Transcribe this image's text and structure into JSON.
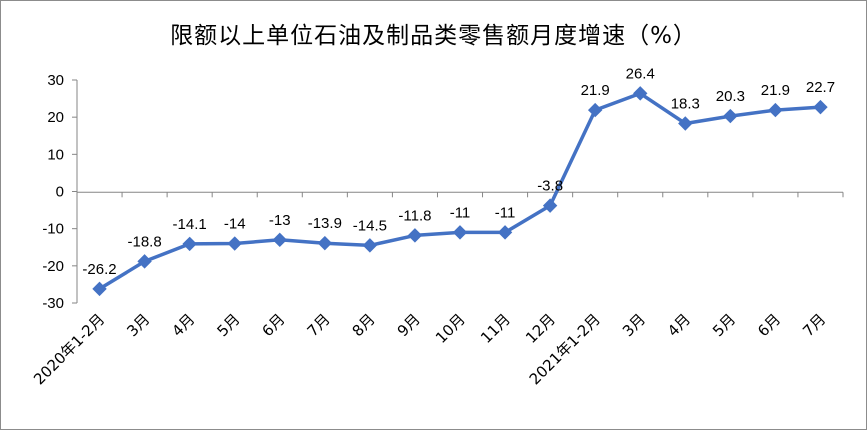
{
  "chart_data": {
    "type": "line",
    "title": "限额以上单位石油及制品类零售额月度增速（%）",
    "categories": [
      "2020年1-2月",
      "3月",
      "4月",
      "5月",
      "6月",
      "7月",
      "8月",
      "9月",
      "10月",
      "11月",
      "12月",
      "2021年1-2月",
      "3月",
      "4月",
      "5月",
      "6月",
      "7月"
    ],
    "series": [
      {
        "values": [
          -26.2,
          -18.8,
          -14.1,
          -14,
          -13,
          -13.9,
          -14.5,
          -11.8,
          -11,
          -11,
          -3.8,
          21.9,
          26.4,
          18.3,
          20.3,
          21.9,
          22.7
        ]
      }
    ],
    "data_labels": [
      "-26.2",
      "-18.8",
      "-14.1",
      "-14",
      "-13",
      "-13.9",
      "-14.5",
      "-11.8",
      "-11",
      "-11",
      "-3.8",
      "21.9",
      "26.4",
      "18.3",
      "20.3",
      "21.9",
      "22.7"
    ],
    "ylim": [
      -30,
      30
    ],
    "yticks": [
      -30,
      -20,
      -10,
      0,
      10,
      20,
      30
    ],
    "grid": false,
    "legend": "none",
    "line_color": "#4472c4",
    "marker_color": "#4472c4"
  }
}
